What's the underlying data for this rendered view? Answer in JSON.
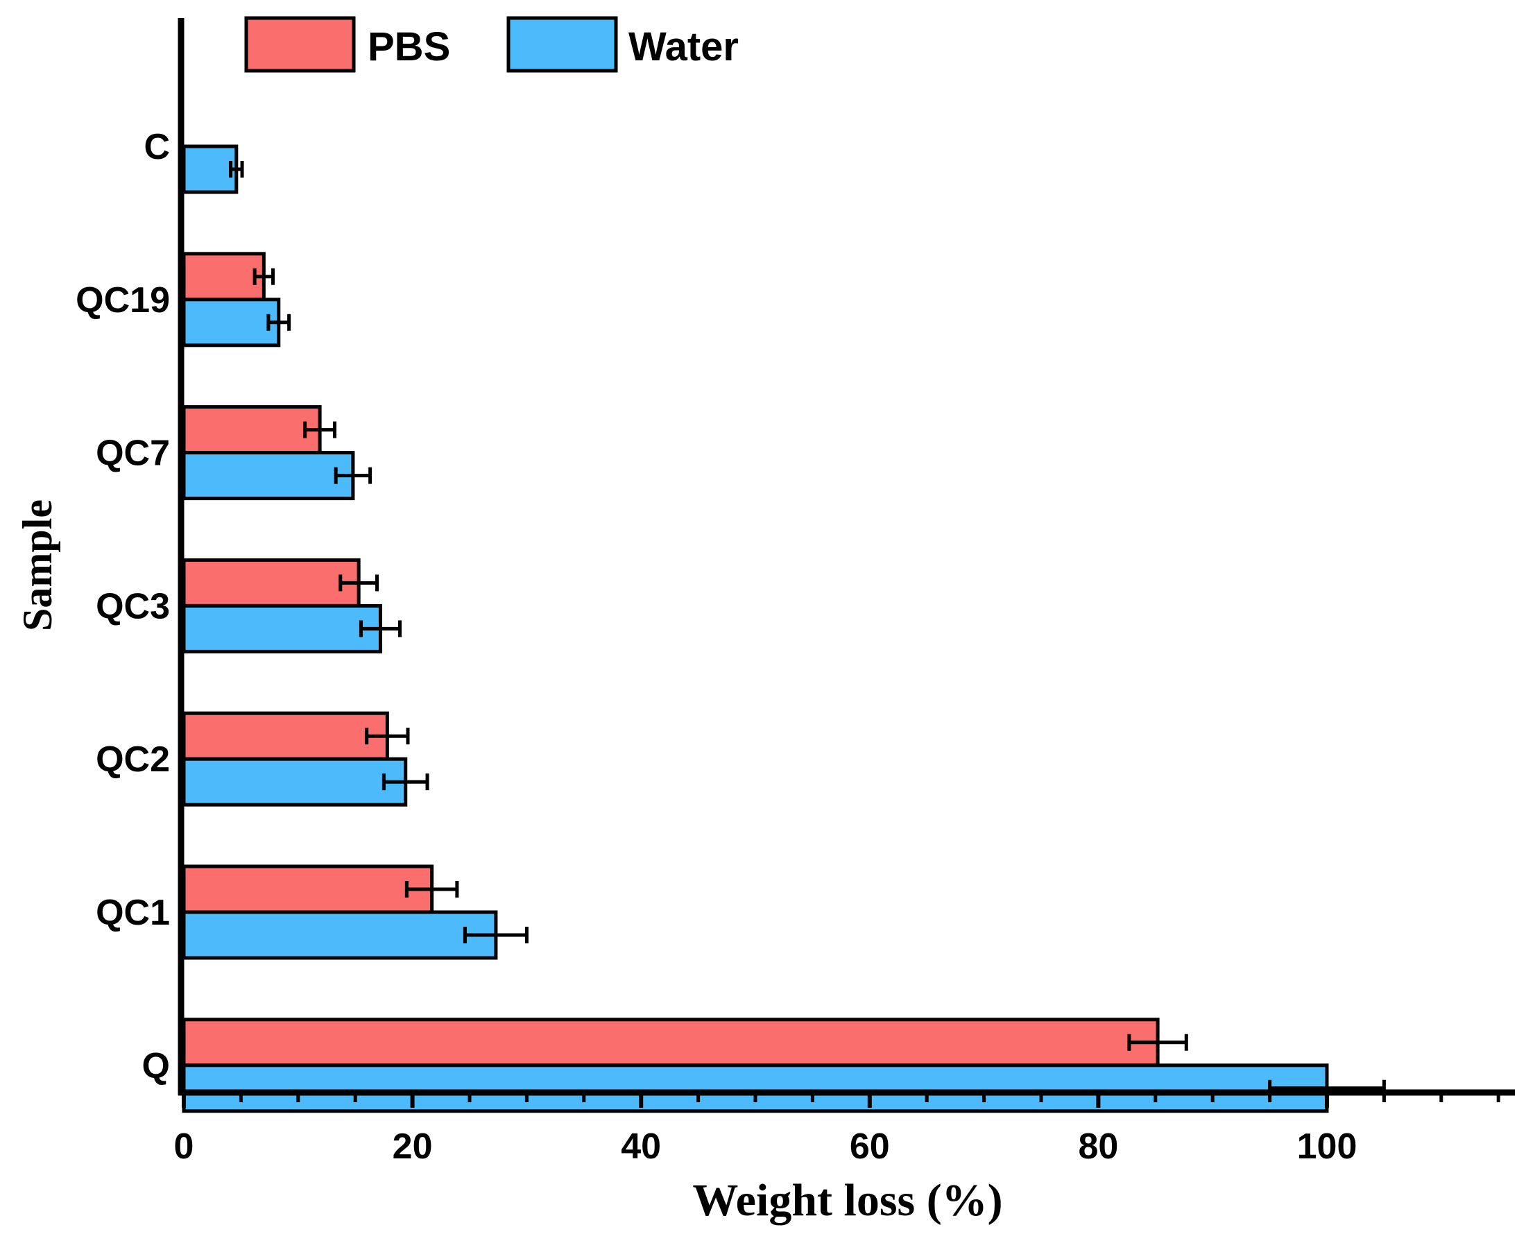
{
  "chart_data": {
    "type": "bar",
    "orientation": "horizontal",
    "title": "",
    "xlabel": "Weight loss (%)",
    "ylabel": "Sample",
    "xlim": [
      0,
      115
    ],
    "x_ticks": [
      "0",
      "20",
      "40",
      "60",
      "80",
      "100"
    ],
    "x_tick_values": [
      0,
      20,
      40,
      60,
      80,
      100
    ],
    "categories": [
      "C",
      "QC19",
      "QC7",
      "QC3",
      "QC2",
      "QC1",
      "Q"
    ],
    "series": [
      {
        "name": "PBS",
        "color": "#FA6E6E",
        "values": [
          null,
          7.0,
          11.9,
          15.3,
          17.8,
          21.7,
          85.2
        ],
        "errors": [
          null,
          0.8,
          1.3,
          1.6,
          1.8,
          2.2,
          2.5
        ]
      },
      {
        "name": "Water",
        "color": "#4DBBFB",
        "values": [
          4.6,
          8.3,
          14.8,
          17.2,
          19.4,
          27.3,
          100.0
        ],
        "errors": [
          0.5,
          0.9,
          1.5,
          1.7,
          1.9,
          2.7,
          5.0
        ]
      }
    ],
    "legend": {
      "position": "top",
      "items": [
        {
          "label": "PBS",
          "color": "#FA6E6E"
        },
        {
          "label": "Water",
          "color": "#4DBBFB"
        }
      ]
    }
  }
}
